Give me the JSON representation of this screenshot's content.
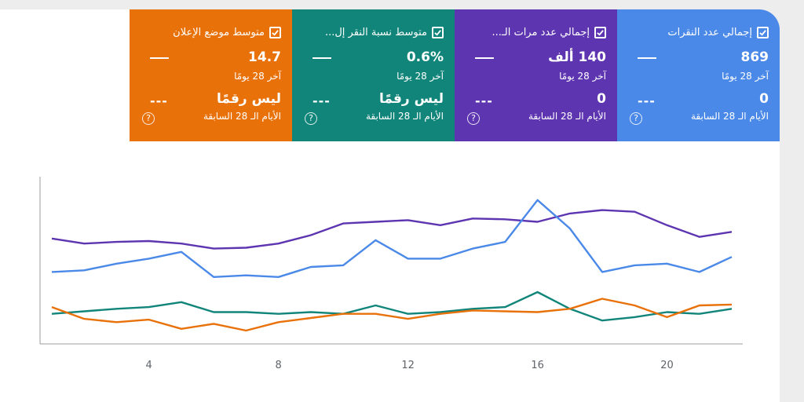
{
  "cards": [
    {
      "title": "متوسط موضع الإعلان",
      "value": "14.7",
      "period": "آخر 28 يومًا",
      "previous_value": "ليس رقمًا",
      "previous_period": "الأيام الـ 28 السابقة",
      "change_placeholder": "---",
      "color": "#e8710a",
      "help_symbol": "?"
    },
    {
      "title": "متوسط نسبة النقر إل...",
      "value": "0.6%",
      "period": "آخر 28 يومًا",
      "previous_value": "ليس رقمًا",
      "previous_period": "الأيام الـ 28 السابقة",
      "change_placeholder": "---",
      "color": "#12857a",
      "help_symbol": "?"
    },
    {
      "title": "إجمالي عدد مرات الـ...",
      "value": "140 ألف",
      "period": "آخر 28 يومًا",
      "previous_value": "0",
      "previous_period": "الأيام الـ 28 السابقة",
      "change_placeholder": "---",
      "color": "#5e35b1",
      "help_symbol": "?"
    },
    {
      "title": "إجمالي عدد النقرات",
      "value": "869",
      "period": "آخر 28 يومًا",
      "previous_value": "0",
      "previous_period": "الأيام الـ 28 السابقة",
      "change_placeholder": "---",
      "color": "#4a89e8",
      "help_symbol": "?"
    }
  ],
  "chart_data": {
    "type": "line",
    "x": [
      1,
      2,
      3,
      4,
      5,
      6,
      7,
      8,
      9,
      10,
      11,
      12,
      13,
      14,
      15,
      16,
      17,
      18,
      19,
      20,
      21,
      22
    ],
    "xticks": [
      "4",
      "8",
      "12",
      "16",
      "20"
    ],
    "xtick_values": [
      4,
      8,
      12,
      16,
      20
    ],
    "xlim": [
      1,
      22
    ],
    "ylim": [
      0,
      100
    ],
    "grid": false,
    "series": [
      {
        "color": "#5e35b1",
        "values": [
          63,
          60,
          61,
          61.5,
          60,
          57,
          57.5,
          60,
          65,
          72,
          73,
          74,
          71,
          75,
          74.5,
          73,
          78,
          80,
          79,
          71,
          64,
          67
        ]
      },
      {
        "color": "#4a89e8",
        "values": [
          43,
          44,
          48,
          51,
          55,
          40,
          41,
          40,
          46,
          47,
          62,
          51,
          51,
          57,
          61,
          86,
          69,
          43,
          47,
          48,
          43,
          52
        ]
      },
      {
        "color": "#12857a",
        "values": [
          18,
          19.5,
          21,
          22,
          25,
          19,
          19,
          18,
          19,
          18,
          23,
          18,
          19,
          21,
          22,
          31,
          21,
          14,
          16,
          19,
          18,
          21
        ]
      },
      {
        "color": "#e8710a",
        "values": [
          22,
          15,
          13,
          14.5,
          9,
          12,
          8,
          13,
          15.5,
          18,
          18,
          15,
          18,
          20,
          19.5,
          19,
          21,
          27,
          23,
          16,
          23,
          23.5
        ]
      }
    ]
  }
}
